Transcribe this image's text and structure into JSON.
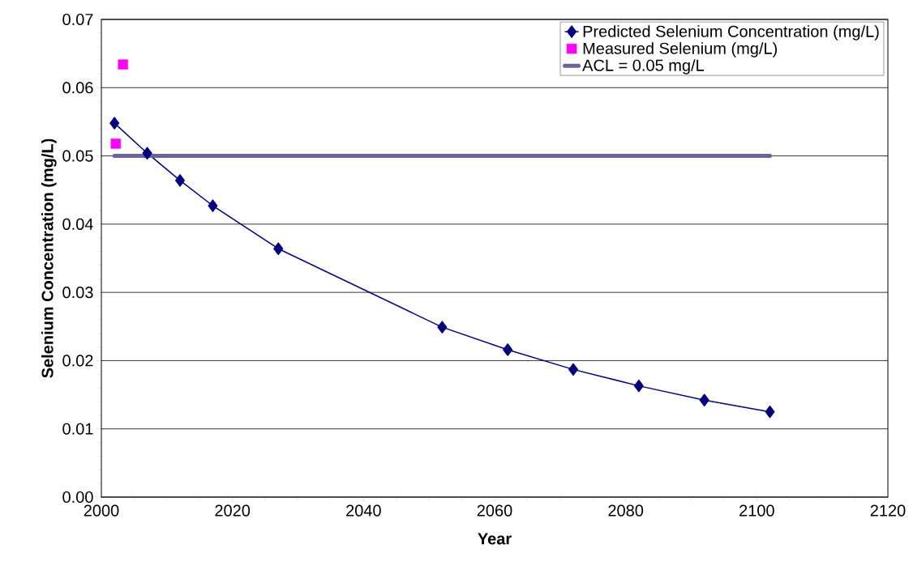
{
  "chart_data": {
    "type": "line",
    "xlabel": "Year",
    "ylabel": "Selenium Concentration (mg/L)",
    "xlim": [
      2000,
      2120
    ],
    "xticks": [
      2000,
      2020,
      2040,
      2060,
      2080,
      2100,
      2120
    ],
    "ylim": [
      0,
      0.07
    ],
    "yticks": [
      {
        "value": 0,
        "label": "0.00"
      },
      0.01,
      0.02,
      0.03,
      0.04,
      0.05,
      0.06,
      0.07
    ],
    "grid": "y",
    "legend": "top right",
    "series": [
      {
        "name": "Predicted Selenium Concentration (mg/L)",
        "color": "#000080",
        "marker": "diamond",
        "x": [
          2002,
          2007,
          2012,
          2017,
          2027,
          2052,
          2062,
          2072,
          2082,
          2092,
          2102
        ],
        "values": [
          0.0548,
          0.0504,
          0.0464,
          0.0427,
          0.0364,
          0.0249,
          0.0216,
          0.0187,
          0.0163,
          0.0142,
          0.0125
        ]
      },
      {
        "name": "Measured Selenium (mg/L)",
        "type": "scatter",
        "color": "#ff00ff",
        "marker": "square",
        "x": [
          2003.3,
          2002.2
        ],
        "values": [
          0.0634,
          0.0518
        ]
      },
      {
        "name": "ACL = 0.05 mg/L",
        "color": "#666699",
        "marker": "none",
        "x": [
          2002,
          2102
        ],
        "values": [
          0.05,
          0.05
        ]
      }
    ]
  }
}
